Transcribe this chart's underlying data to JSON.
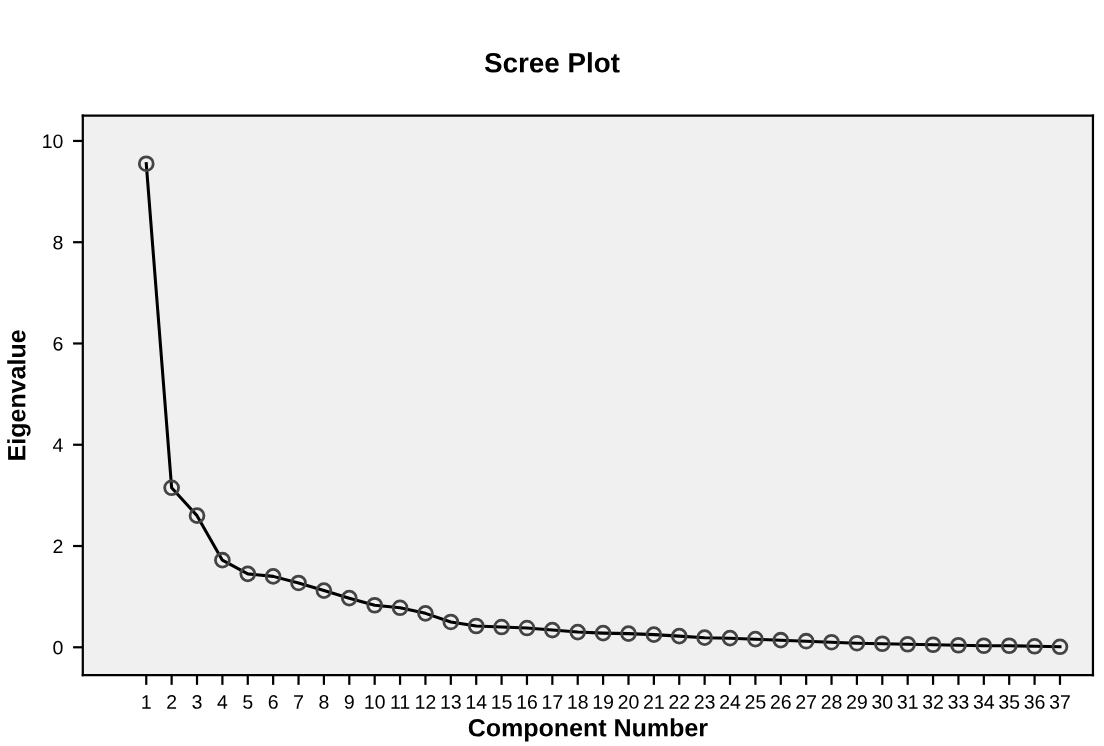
{
  "chart_data": {
    "type": "line",
    "title": "Scree Plot",
    "xlabel": "Component Number",
    "ylabel": "Eigenvalue",
    "categories": [
      "1",
      "2",
      "3",
      "4",
      "5",
      "6",
      "7",
      "8",
      "9",
      "10",
      "11",
      "12",
      "13",
      "14",
      "15",
      "16",
      "17",
      "18",
      "19",
      "20",
      "21",
      "22",
      "23",
      "24",
      "25",
      "26",
      "27",
      "28",
      "29",
      "30",
      "31",
      "32",
      "33",
      "34",
      "35",
      "36",
      "37"
    ],
    "series": [
      {
        "color": "#000000",
        "values": [
          9.55,
          3.15,
          2.6,
          1.72,
          1.45,
          1.4,
          1.27,
          1.12,
          0.97,
          0.83,
          0.78,
          0.67,
          0.5,
          0.42,
          0.4,
          0.38,
          0.34,
          0.3,
          0.28,
          0.27,
          0.25,
          0.22,
          0.19,
          0.18,
          0.16,
          0.14,
          0.12,
          0.1,
          0.08,
          0.07,
          0.06,
          0.05,
          0.04,
          0.03,
          0.03,
          0.02,
          0.01
        ]
      }
    ],
    "ylim": [
      -0.55,
      10.5
    ],
    "yticks": [
      0,
      2,
      4,
      6,
      8,
      10
    ],
    "marker": "circle",
    "line_style": "solid",
    "grid": false,
    "legend": false
  }
}
